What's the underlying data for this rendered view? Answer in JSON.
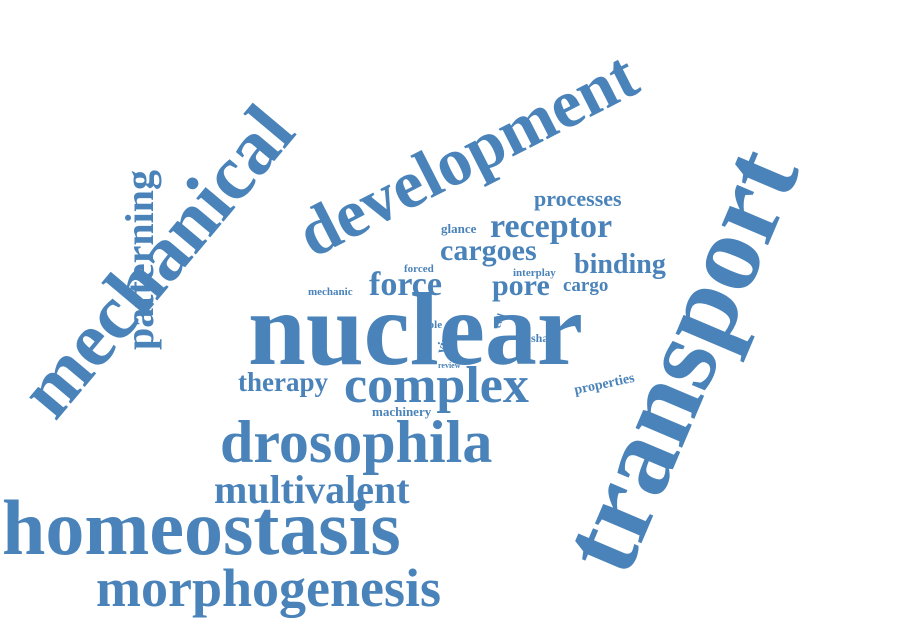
{
  "cloud": {
    "color": "#4a83b9",
    "words": {
      "nuclear": "nuclear",
      "transport": "transport",
      "development": "development",
      "mechanical": "mechanical",
      "homeostasis": "homeostasis",
      "drosophila": "drosophila",
      "morphogenesis": "morphogenesis",
      "complex": "complex",
      "multivalent": "multivalent",
      "patterning": "patterning",
      "receptor": "receptor",
      "force": "force",
      "cargoes": "cargoes",
      "binding": "binding",
      "processes": "processes",
      "pore": "pore",
      "cargo": "cargo",
      "therapy": "therapy",
      "glance": "glance",
      "interplay": "interplay",
      "forced": "forced",
      "mechanic": "mechanic",
      "virus": "virus",
      "role": "role",
      "cell": "cell",
      "shape": "shape",
      "review": "review",
      "machinery": "machinery",
      "properties": "properties"
    }
  }
}
